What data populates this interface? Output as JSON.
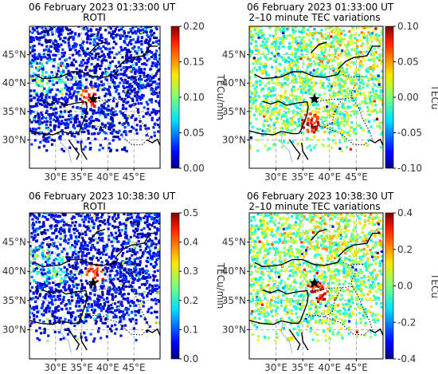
{
  "figure": {
    "panels": [
      {
        "id": "a",
        "title_line1": "06 February 2023 01:33:00 UT",
        "title_line2": "ROTI",
        "colorbar": {
          "label": "TECu/min",
          "ticks": [
            "0.00",
            "0.05",
            "0.10",
            "0.15",
            "0.20"
          ],
          "min": 0,
          "max": 0.2
        },
        "epicenter": {
          "lon": 37.2,
          "lat": 37.2
        },
        "hot_region": {
          "lon": 36.5,
          "lat": 37.5,
          "intensity": 0.55
        },
        "lon_ticks": [
          "30°E",
          "35°E",
          "40°E",
          "45°E"
        ],
        "lat_ticks": [
          "30°N",
          "35°N",
          "40°N",
          "45°N"
        ]
      },
      {
        "id": "b",
        "title_line1": "06 February 2023 01:33:00 UT",
        "title_line2": "2–10 minute TEC variations",
        "colorbar": {
          "label": "TECu",
          "ticks": [
            "-0.10",
            "-0.05",
            "0.00",
            "0.05",
            "0.10"
          ],
          "min": -0.1,
          "max": 0.1
        },
        "epicenter": {
          "lon": 37.2,
          "lat": 37.2
        },
        "hot_region": {
          "lon": 36.5,
          "lat": 33,
          "intensity": 0.9
        },
        "lon_ticks": [
          "30°E",
          "35°E",
          "40°E",
          "45°E"
        ],
        "lat_ticks": [
          "30°N",
          "35°N",
          "40°N",
          "45°N"
        ]
      },
      {
        "id": "c",
        "title_line1": "06 February 2023 10:38:30 UT",
        "title_line2": "ROTI",
        "colorbar": {
          "label": "TECu/min",
          "ticks": [
            "0.0",
            "0.1",
            "0.2",
            "0.3",
            "0.4",
            "0.5"
          ],
          "min": 0,
          "max": 0.5
        },
        "epicenter": {
          "lon": 37.2,
          "lat": 38.0
        },
        "hot_region": {
          "lon": 37.5,
          "lat": 39.5,
          "intensity": 1.0
        },
        "lon_ticks": [
          "30°E",
          "35°E",
          "40°E",
          "45°E"
        ],
        "lat_ticks": [
          "30°N",
          "35°N",
          "40°N",
          "45°N"
        ]
      },
      {
        "id": "d",
        "title_line1": "06 February 2023 10:38:30 UT",
        "title_line2": "2–10 minute TEC variations",
        "colorbar": {
          "label": "TECu",
          "ticks": [
            "-0.4",
            "-0.2",
            "0.0",
            "0.2",
            "0.4"
          ],
          "min": -0.4,
          "max": 0.4
        },
        "epicenter": {
          "lon": 37.2,
          "lat": 38.0
        },
        "hot_region": {
          "lon": 38,
          "lat": 36.5,
          "intensity": 0.6
        },
        "lon_ticks": [
          "30°E",
          "35°E",
          "40°E",
          "45°E"
        ],
        "lat_ticks": [
          "30°N",
          "35°N",
          "40°N",
          "45°N"
        ]
      }
    ]
  },
  "colors": {
    "epicenter": "#000000",
    "grid": "#999999",
    "coast": "#000000"
  }
}
